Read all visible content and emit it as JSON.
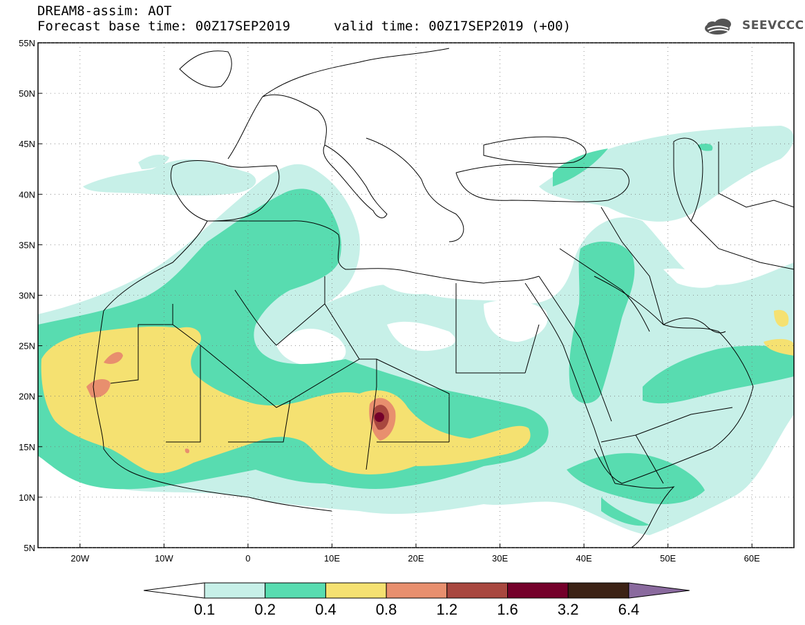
{
  "header": {
    "title": "DREAM8-assim: AOT",
    "base_time": "Forecast base time: 00Z17SEP2019",
    "valid_time": "valid time: 00Z17SEP2019 (+00)",
    "logo_text": "SEEVCCC"
  },
  "map": {
    "lon_range": [
      -25,
      65
    ],
    "lat_range": [
      5,
      55
    ],
    "lon_ticks": [
      {
        "lon": -20,
        "label": "20W"
      },
      {
        "lon": -10,
        "label": "10W"
      },
      {
        "lon": 0,
        "label": "0"
      },
      {
        "lon": 10,
        "label": "10E"
      },
      {
        "lon": 20,
        "label": "20E"
      },
      {
        "lon": 30,
        "label": "30E"
      },
      {
        "lon": 40,
        "label": "40E"
      },
      {
        "lon": 50,
        "label": "50E"
      },
      {
        "lon": 60,
        "label": "60E"
      }
    ],
    "lat_ticks": [
      {
        "lat": 55,
        "label": "55N"
      },
      {
        "lat": 50,
        "label": "50N"
      },
      {
        "lat": 45,
        "label": "45N"
      },
      {
        "lat": 40,
        "label": "40N"
      },
      {
        "lat": 35,
        "label": "35N"
      },
      {
        "lat": 30,
        "label": "30N"
      },
      {
        "lat": 25,
        "label": "25N"
      },
      {
        "lat": 20,
        "label": "20N"
      },
      {
        "lat": 15,
        "label": "15N"
      },
      {
        "lat": 10,
        "label": "10N"
      },
      {
        "lat": 5,
        "label": "5N"
      }
    ],
    "grid": "dotted"
  },
  "colorbar": {
    "colors": [
      "#ffffff",
      "#c7f0e8",
      "#58dcb0",
      "#f5e171",
      "#e88f6e",
      "#a8473f",
      "#74002a",
      "#3c2215",
      "#8a6a9e"
    ],
    "labels": [
      "0.1",
      "0.2",
      "0.4",
      "0.8",
      "1.2",
      "1.6",
      "3.2",
      "6.4"
    ]
  }
}
